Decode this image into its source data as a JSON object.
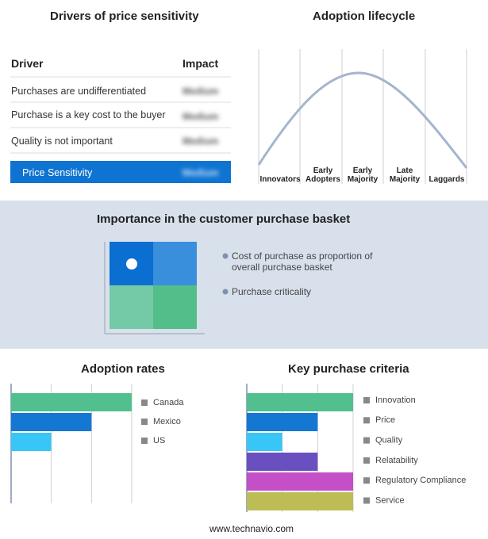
{
  "drivers": {
    "title": "Drivers of price sensitivity",
    "header": {
      "driver": "Driver",
      "impact": "Impact"
    },
    "rows": [
      [
        "Purchases are undifferentiated",
        "Medium"
      ],
      [
        "Purchase is a key cost to the buyer",
        "Medium"
      ],
      [
        "Quality is not important",
        "Medium"
      ]
    ],
    "summary": [
      "Price Sensitivity",
      "Medium"
    ]
  },
  "lifecycle": {
    "title": "Adoption lifecycle",
    "stages": [
      "Innovators",
      "Early Adopters",
      "Early Majority",
      "Late Majority",
      "Laggards"
    ]
  },
  "basket": {
    "title": "Importance in the customer purchase basket",
    "legend": [
      "Cost of purchase as proportion of overall purchase basket",
      "Purchase criticality"
    ]
  },
  "chart_data": [
    {
      "type": "bar",
      "orientation": "horizontal",
      "title": "Adoption rates",
      "categories": [
        "Canada",
        "Mexico",
        "US"
      ],
      "values": [
        3,
        2,
        1
      ],
      "colors": [
        "#52bf8f",
        "#1478d2",
        "#38c6f7"
      ],
      "xlim": [
        0,
        3
      ],
      "xticks": [
        0,
        1,
        2,
        3
      ],
      "grid": true
    },
    {
      "type": "bar",
      "orientation": "horizontal",
      "title": "Key purchase criteria",
      "categories": [
        "Innovation",
        "Price",
        "Quality",
        "Relatability",
        "Regulatory Compliance",
        "Service"
      ],
      "values": [
        3,
        2,
        1,
        2,
        3,
        3
      ],
      "colors": [
        "#52bf8f",
        "#1478d2",
        "#38c6f7",
        "#6a4fc0",
        "#c44fc6",
        "#bdbd55"
      ],
      "xlim": [
        0,
        3
      ],
      "xticks": [
        0,
        1,
        2,
        3
      ],
      "grid": true
    }
  ],
  "footer": "www.technavio.com"
}
